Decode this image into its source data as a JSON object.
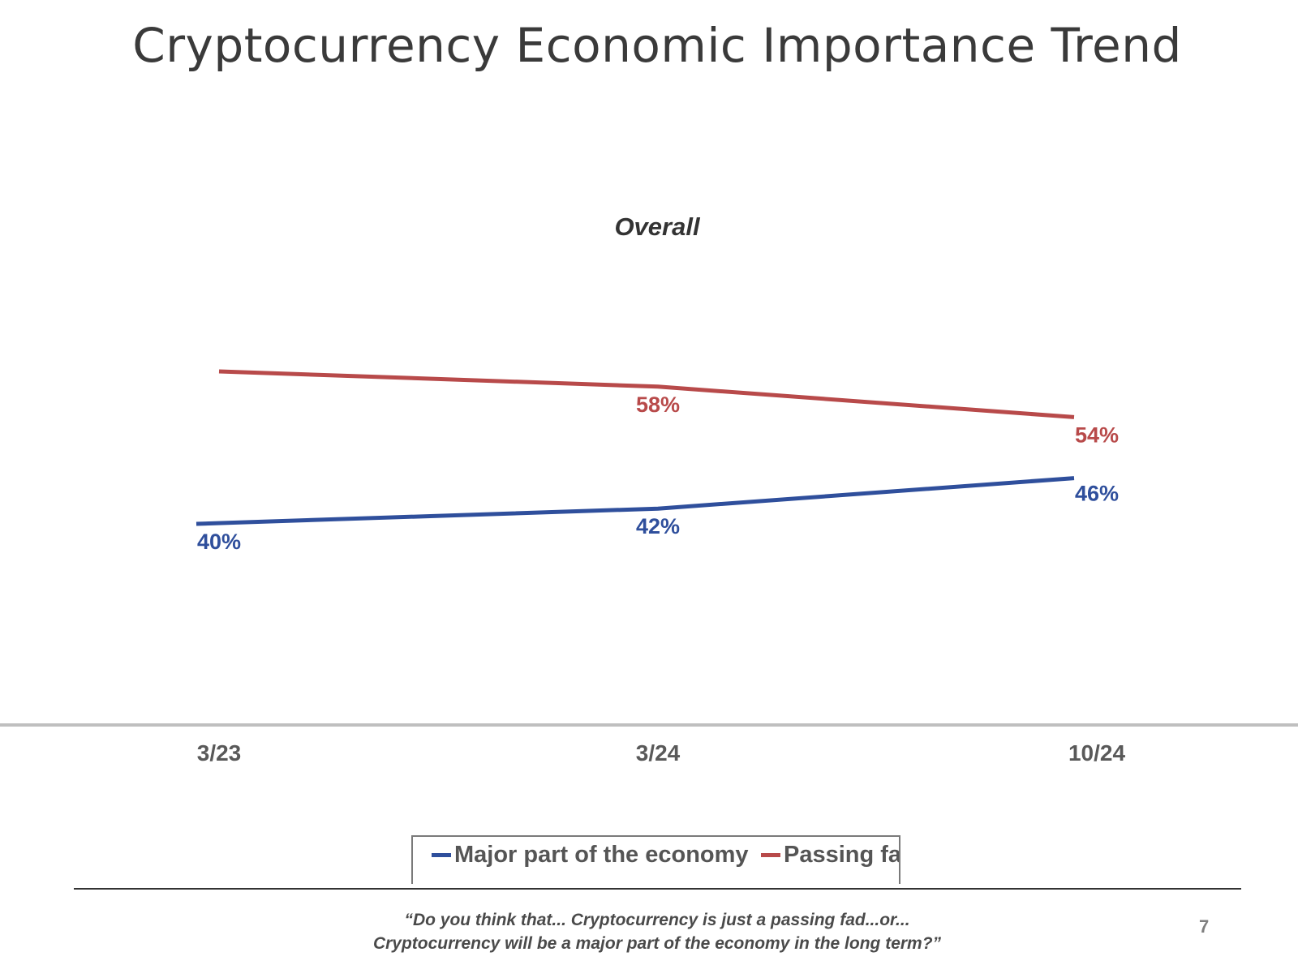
{
  "slide": {
    "title": "Cryptocurrency Economic Importance Trend",
    "footnote_line1": "“Do you think that... Cryptocurrency is just a passing fad...or...",
    "footnote_line2": "Cryptocurrency will be a major part of the economy in the long term?”",
    "page_number": "7"
  },
  "chart_data": {
    "type": "line",
    "title": "Overall",
    "categories": [
      "3/23",
      "3/24",
      "10/24"
    ],
    "xlabel": "",
    "ylabel": "",
    "grid": false,
    "legend_position": "bottom",
    "series": [
      {
        "name": "Major part of the economy",
        "color": "#2f4f9c",
        "values": [
          40,
          42,
          46
        ],
        "labels": [
          "40%",
          "42%",
          "46%"
        ],
        "label_placement": [
          "below",
          "below",
          "above"
        ]
      },
      {
        "name": "Passing fad",
        "color": "#b84a4a",
        "values": [
          60,
          58,
          54
        ],
        "labels": [
          "",
          "58%",
          "54%"
        ],
        "label_placement": [
          "below",
          "below",
          "below"
        ]
      }
    ]
  }
}
